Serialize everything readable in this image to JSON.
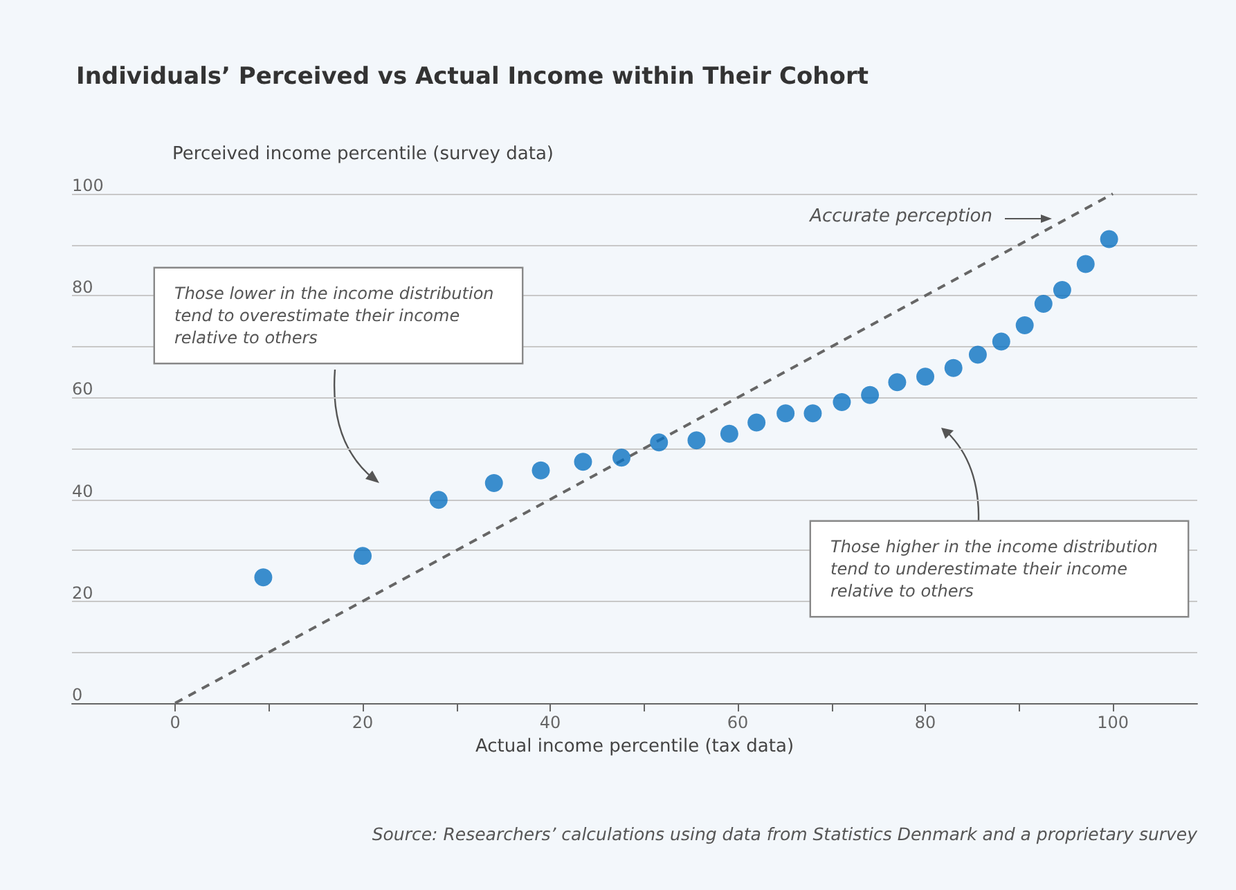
{
  "chart_data": {
    "type": "scatter",
    "title": "Individuals’ Perceived vs Actual Income within Their Cohort",
    "xlabel": "Actual income percentile (tax data)",
    "ylabel": "Perceived income percentile (survey data)",
    "annotations": [
      "Accurate perception",
      "Those lower in the income distribution tend to overestimate their income relative to others",
      "Those higher in the income distribution tend to underestimate their income relative to others",
      "Source: Researchers’ calculations using data from Statistics Denmark and a proprietary survey"
    ],
    "series": [
      {
        "color": "#0b72c2",
        "x": [
          9.4,
          20.0,
          28.1,
          34.0,
          39.0,
          43.5,
          47.6,
          51.6,
          55.6,
          59.1,
          62.0,
          65.1,
          68.0,
          71.1,
          74.1,
          77.0,
          80.0,
          83.0,
          85.6,
          88.1,
          90.6,
          92.6,
          94.6,
          97.1,
          99.6
        ],
        "values": [
          24.7,
          28.9,
          39.9,
          43.2,
          45.7,
          47.4,
          48.2,
          51.2,
          51.6,
          52.9,
          55.1,
          56.9,
          56.9,
          59.1,
          60.5,
          63.0,
          64.1,
          65.8,
          68.4,
          71.0,
          74.2,
          78.4,
          81.1,
          86.2,
          91.1
        ]
      },
      {
        "type": "line",
        "color": "#666666",
        "line_style": "dashed",
        "marker": "none",
        "x": [
          0,
          100
        ],
        "values": [
          0,
          100
        ]
      }
    ],
    "marker": "circle",
    "grid": "y",
    "xlim": [
      -11,
      109
    ],
    "ylim": [
      0,
      100
    ],
    "xticks": [
      0,
      {
        "value": 10,
        "label": null
      },
      20,
      {
        "value": 30,
        "label": null
      },
      40,
      {
        "value": 50,
        "label": null
      },
      60,
      {
        "value": 70,
        "label": null
      },
      80,
      {
        "value": 90,
        "label": null
      },
      100
    ],
    "yticks": [
      0,
      {
        "value": 10,
        "label": null
      },
      20,
      {
        "value": 30,
        "label": null
      },
      40,
      {
        "value": 50,
        "label": null
      },
      60,
      {
        "value": 70,
        "label": null
      },
      80,
      {
        "value": 90,
        "label": null
      },
      100
    ]
  }
}
